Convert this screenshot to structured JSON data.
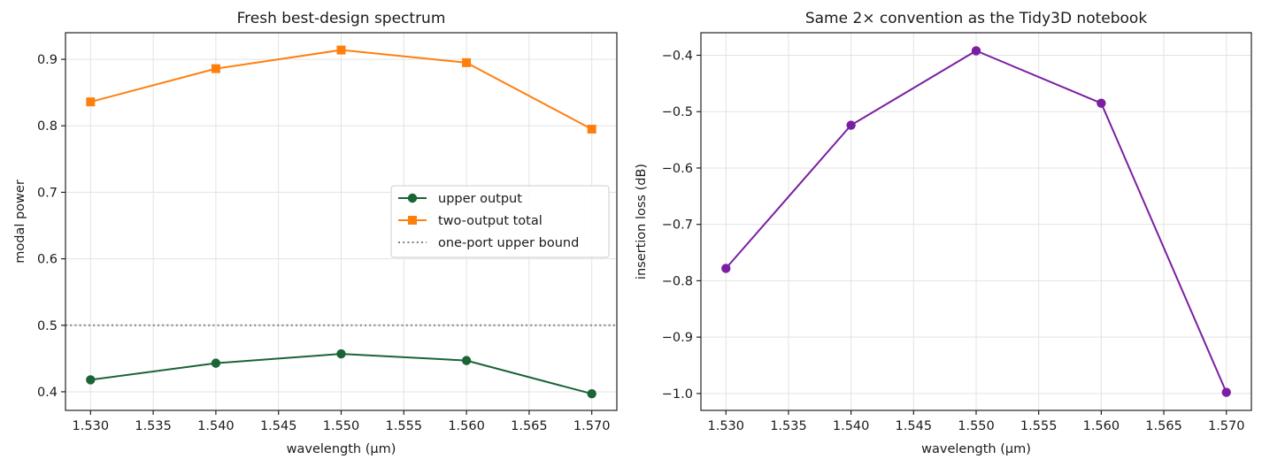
{
  "chart_data": [
    {
      "type": "line",
      "title": "Fresh best-design spectrum",
      "xlabel": "wavelength (μm)",
      "ylabel": "modal power",
      "xlim": [
        1.528,
        1.572
      ],
      "ylim": [
        0.372,
        0.94
      ],
      "xticks": [
        1.53,
        1.535,
        1.54,
        1.545,
        1.55,
        1.555,
        1.56,
        1.565,
        1.57
      ],
      "xtick_labels": [
        "1.530",
        "1.535",
        "1.540",
        "1.545",
        "1.550",
        "1.555",
        "1.560",
        "1.565",
        "1.570"
      ],
      "yticks": [
        0.4,
        0.5,
        0.6,
        0.7,
        0.8,
        0.9
      ],
      "ytick_labels": [
        "0.4",
        "0.5",
        "0.6",
        "0.7",
        "0.8",
        "0.9"
      ],
      "grid": true,
      "legend_position": "center-right",
      "series": [
        {
          "name": "upper output",
          "color": "#1a6436",
          "marker": "circle",
          "x": [
            1.53,
            1.54,
            1.55,
            1.56,
            1.57
          ],
          "y": [
            0.418,
            0.443,
            0.457,
            0.447,
            0.397
          ]
        },
        {
          "name": "two-output total",
          "color": "#ff7f0e",
          "marker": "square",
          "x": [
            1.53,
            1.54,
            1.55,
            1.56,
            1.57
          ],
          "y": [
            0.836,
            0.886,
            0.914,
            0.895,
            0.795
          ]
        }
      ],
      "reference_lines": [
        {
          "name": "one-port upper bound",
          "y": 0.5,
          "color": "#808080",
          "style": "dotted"
        }
      ]
    },
    {
      "type": "line",
      "title": "Same 2× convention as the Tidy3D notebook",
      "xlabel": "wavelength (μm)",
      "ylabel": "insertion loss (dB)",
      "xlim": [
        1.528,
        1.572
      ],
      "ylim": [
        -1.03,
        -0.36
      ],
      "xticks": [
        1.53,
        1.535,
        1.54,
        1.545,
        1.55,
        1.555,
        1.56,
        1.565,
        1.57
      ],
      "xtick_labels": [
        "1.530",
        "1.535",
        "1.540",
        "1.545",
        "1.550",
        "1.555",
        "1.560",
        "1.565",
        "1.570"
      ],
      "yticks": [
        -1.0,
        -0.9,
        -0.8,
        -0.7,
        -0.6,
        -0.5,
        -0.4
      ],
      "ytick_labels": [
        "−1.0",
        "−0.9",
        "−0.8",
        "−0.7",
        "−0.6",
        "−0.5",
        "−0.4"
      ],
      "grid": true,
      "series": [
        {
          "color": "#7b1fa2",
          "marker": "circle",
          "x": [
            1.53,
            1.54,
            1.55,
            1.56,
            1.57
          ],
          "y": [
            -0.778,
            -0.524,
            -0.392,
            -0.485,
            -0.998
          ]
        }
      ]
    }
  ]
}
